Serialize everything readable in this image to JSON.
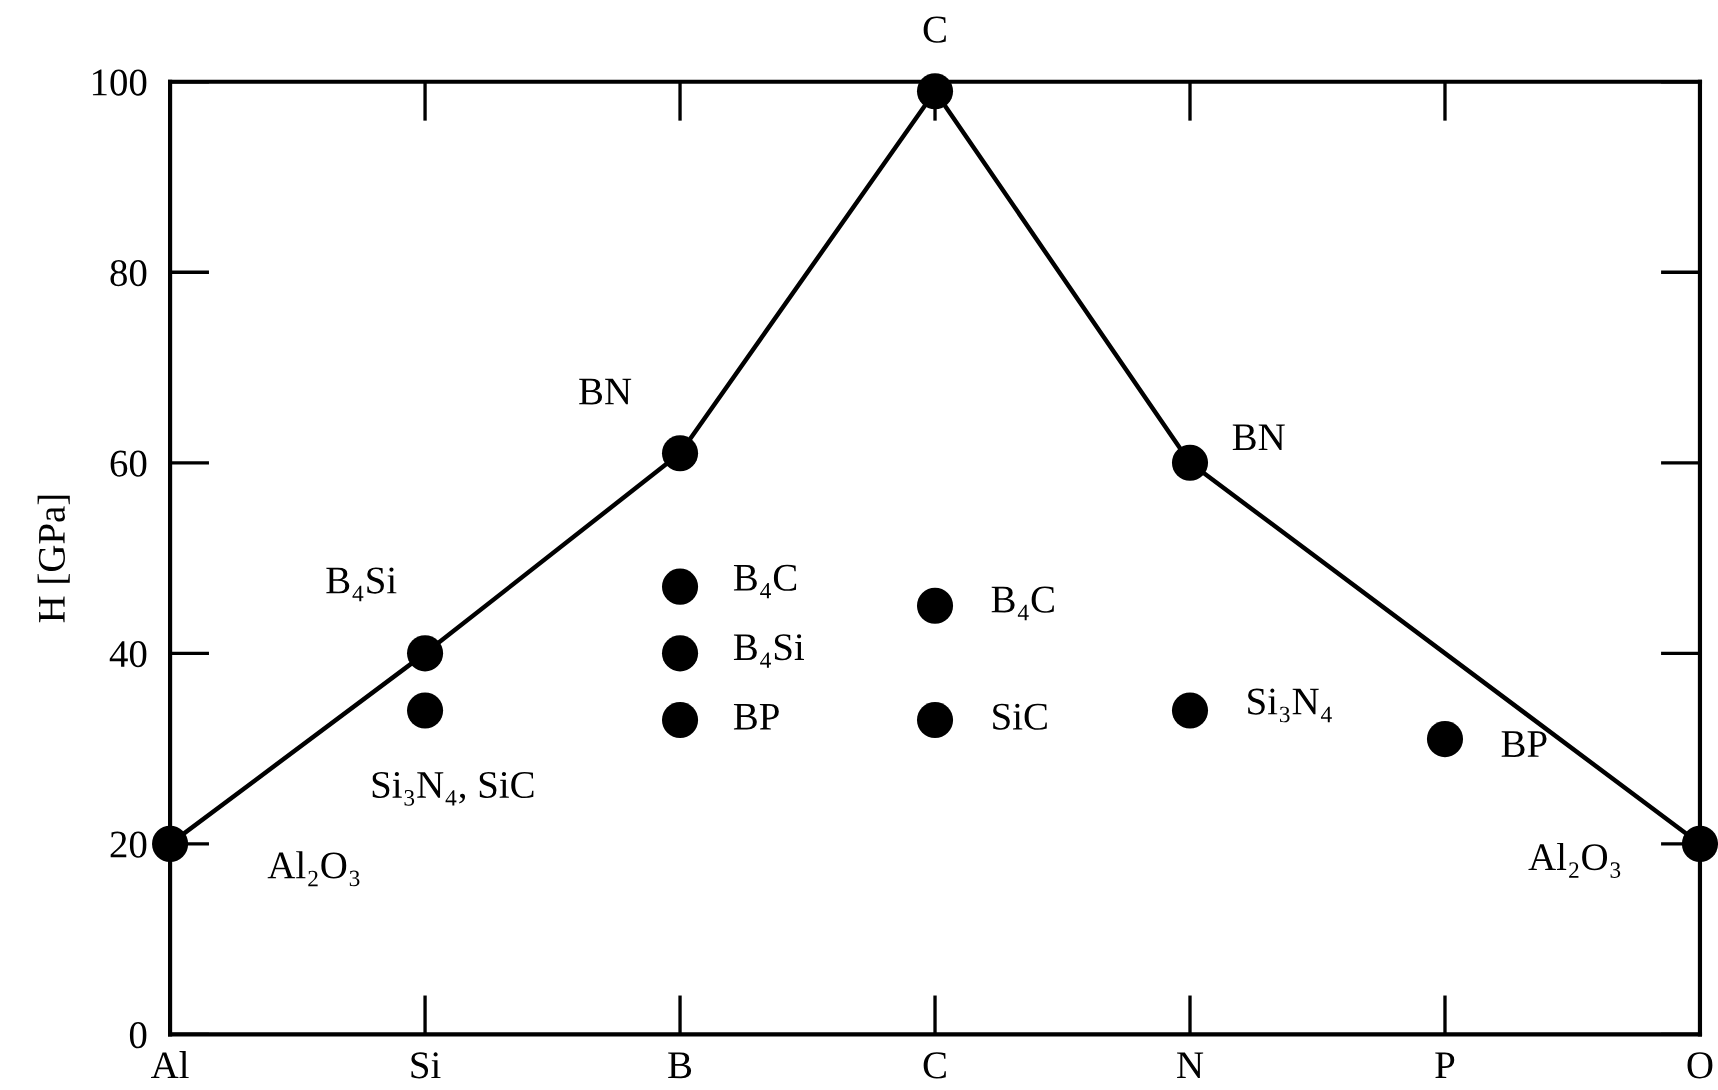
{
  "chart_data": {
    "type": "line",
    "ylabel": "H [GPa]",
    "categories": [
      "Al",
      "Si",
      "B",
      "C",
      "N",
      "P",
      "O"
    ],
    "ylim": [
      0,
      100
    ],
    "yticks": [
      0,
      20,
      40,
      60,
      80,
      100
    ],
    "grid": false,
    "marker": "circle",
    "series": [
      {
        "x": [
          "Al",
          "Si",
          "B",
          "C",
          "N",
          "O"
        ],
        "values": [
          20,
          40,
          61,
          99,
          60,
          20
        ],
        "color": "#000000",
        "line_style": "solid"
      },
      {
        "type": "scatter",
        "x": [
          "Si",
          "B",
          "B",
          "B",
          "C",
          "C",
          "N",
          "P"
        ],
        "values": [
          34,
          47,
          40,
          33,
          45,
          33,
          34,
          31
        ],
        "color": "#000000"
      }
    ],
    "annotations": [
      {
        "text": "Al₂O₃",
        "x": "Al",
        "y": 20
      },
      {
        "text": "B₄Si",
        "x": "Si",
        "y": 40
      },
      {
        "text": "Si₃N₄, SiC",
        "x": "Si",
        "y": 34
      },
      {
        "text": "BN",
        "x": "B",
        "y": 61
      },
      {
        "text": "B₄C",
        "x": "B",
        "y": 47
      },
      {
        "text": "B₄Si",
        "x": "B",
        "y": 40
      },
      {
        "text": "BP",
        "x": "B",
        "y": 33
      },
      {
        "text": "C",
        "x": "C",
        "y": 99
      },
      {
        "text": "B₄C",
        "x": "C",
        "y": 45
      },
      {
        "text": "SiC",
        "x": "C",
        "y": 33
      },
      {
        "text": "BN",
        "x": "N",
        "y": 60
      },
      {
        "text": "Si₃N₄",
        "x": "N",
        "y": 34
      },
      {
        "text": "BP",
        "x": "P",
        "y": 31
      },
      {
        "text": "Al₂O₃",
        "x": "O",
        "y": 20
      }
    ]
  }
}
